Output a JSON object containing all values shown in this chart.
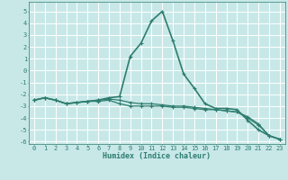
{
  "xlabel": "Humidex (Indice chaleur)",
  "background_color": "#c8e8e8",
  "grid_color": "#ffffff",
  "line_color": "#2e7d6e",
  "xlim": [
    -0.5,
    23.5
  ],
  "ylim": [
    -6.2,
    5.8
  ],
  "xticks": [
    0,
    1,
    2,
    3,
    4,
    5,
    6,
    7,
    8,
    9,
    10,
    11,
    12,
    13,
    14,
    15,
    16,
    17,
    18,
    19,
    20,
    21,
    22,
    23
  ],
  "yticks": [
    -6,
    -5,
    -4,
    -3,
    -2,
    -1,
    0,
    1,
    2,
    3,
    4,
    5
  ],
  "line1_x": [
    0,
    1,
    2,
    3,
    4,
    5,
    6,
    7,
    8,
    9,
    10,
    11,
    12,
    13,
    14,
    15,
    16,
    17,
    18,
    19,
    20,
    21,
    22,
    23
  ],
  "line1_y": [
    -2.5,
    -2.3,
    -2.5,
    -2.8,
    -2.7,
    -2.6,
    -2.5,
    -2.3,
    -2.2,
    1.2,
    2.3,
    4.2,
    5.0,
    2.5,
    -0.3,
    -1.5,
    -2.8,
    -3.2,
    -3.2,
    -3.3,
    -4.2,
    -5.0,
    -5.5,
    -5.8
  ],
  "line2_x": [
    0,
    1,
    2,
    3,
    4,
    5,
    6,
    7,
    8,
    9,
    10,
    11,
    12,
    13,
    14,
    15,
    16,
    17,
    18,
    19,
    20,
    21,
    22,
    23
  ],
  "line2_y": [
    -2.5,
    -2.3,
    -2.5,
    -2.8,
    -2.7,
    -2.6,
    -2.5,
    -2.4,
    -2.5,
    -2.7,
    -2.8,
    -2.8,
    -2.9,
    -3.0,
    -3.0,
    -3.1,
    -3.2,
    -3.3,
    -3.4,
    -3.5,
    -3.9,
    -4.5,
    -5.5,
    -5.8
  ],
  "line3_x": [
    0,
    1,
    2,
    3,
    4,
    5,
    6,
    7,
    8,
    9,
    10,
    11,
    12,
    13,
    14,
    15,
    16,
    17,
    18,
    19,
    20,
    21,
    22,
    23
  ],
  "line3_y": [
    -2.5,
    -2.3,
    -2.5,
    -2.8,
    -2.7,
    -2.6,
    -2.6,
    -2.5,
    -2.8,
    -3.0,
    -3.0,
    -3.0,
    -3.0,
    -3.1,
    -3.1,
    -3.2,
    -3.3,
    -3.3,
    -3.4,
    -3.5,
    -4.0,
    -4.6,
    -5.5,
    -5.8
  ],
  "tick_fontsize": 5,
  "xlabel_fontsize": 6,
  "linewidth1": 1.2,
  "linewidth2": 0.9,
  "markersize": 2.5
}
